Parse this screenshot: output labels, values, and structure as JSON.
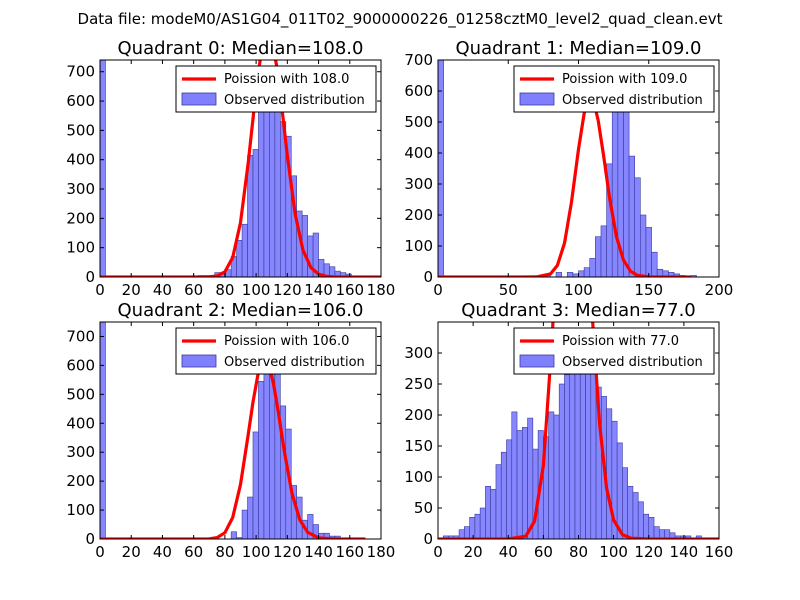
{
  "suptitle": "Data file: modeM0/AS1G04_011T02_9000000226_01258cztM0_level2_quad_clean.evt",
  "colors": {
    "poisson": "#ff0000",
    "hist_fill": "#8080ff",
    "hist_edge": "#3a3a99",
    "axes": "#000000",
    "legend_edge": "#000000"
  },
  "chart_data": [
    {
      "type": "bar",
      "title": "Quadrant 0: Median=108.0",
      "median": 108,
      "xlim": [
        0,
        180
      ],
      "ylim": [
        0,
        740
      ],
      "xticks": [
        0,
        20,
        40,
        60,
        80,
        100,
        120,
        140,
        160,
        180
      ],
      "yticks": [
        0,
        100,
        200,
        300,
        400,
        500,
        600,
        700
      ],
      "xtick_labels": [
        "0",
        "20",
        "40",
        "60",
        "80",
        "100",
        "120",
        "140",
        "160",
        "180"
      ],
      "ytick_labels": [
        "0",
        "100",
        "200",
        "300",
        "400",
        "500",
        "600",
        "700"
      ],
      "legend": [
        "Poission with 108.0",
        "Observed distribution"
      ],
      "bins": {
        "start": 0,
        "width": 3.5,
        "counts": [
          740,
          0,
          0,
          0,
          0,
          0,
          0,
          0,
          0,
          0,
          0,
          0,
          0,
          0,
          0,
          0,
          0,
          0,
          5,
          5,
          5,
          15,
          15,
          25,
          70,
          125,
          180,
          415,
          435,
          620,
          690,
          640,
          680,
          530,
          480,
          345,
          225,
          210,
          140,
          150,
          60,
          45,
          35,
          20,
          15,
          10,
          0,
          0,
          0,
          0,
          0,
          0
        ]
      },
      "curve_x": [
        0,
        60,
        70,
        75,
        80,
        85,
        90,
        95,
        100,
        103,
        106,
        108,
        110,
        113,
        116,
        120,
        125,
        130,
        135,
        140,
        145,
        150,
        180
      ]
    },
    {
      "type": "bar",
      "title": "Quadrant 1: Median=109.0",
      "median": 109,
      "xlim": [
        0,
        200
      ],
      "ylim": [
        0,
        700
      ],
      "xticks": [
        0,
        50,
        100,
        150,
        200
      ],
      "yticks": [
        0,
        100,
        200,
        300,
        400,
        500,
        600,
        700
      ],
      "xtick_labels": [
        "0",
        "50",
        "100",
        "150",
        "200"
      ],
      "ytick_labels": [
        "0",
        "100",
        "200",
        "300",
        "400",
        "500",
        "600",
        "700"
      ],
      "legend": [
        "Poission with 109.0",
        "Observed distribution"
      ],
      "bins": {
        "start": 0,
        "width": 4.0,
        "counts": [
          700,
          0,
          0,
          0,
          0,
          0,
          0,
          0,
          0,
          0,
          0,
          0,
          0,
          0,
          0,
          0,
          0,
          0,
          5,
          5,
          0,
          15,
          0,
          15,
          10,
          20,
          30,
          60,
          130,
          165,
          365,
          545,
          650,
          540,
          390,
          320,
          200,
          160,
          80,
          25,
          20,
          15,
          10,
          5,
          0,
          5,
          0,
          0,
          0,
          0
        ]
      },
      "curve_x": [
        0,
        60,
        70,
        80,
        85,
        90,
        95,
        100,
        104,
        107,
        109,
        111,
        114,
        118,
        122,
        127,
        132,
        137,
        142,
        150,
        160,
        180
      ]
    },
    {
      "type": "bar",
      "title": "Quadrant 2: Median=106.0",
      "median": 106,
      "xlim": [
        0,
        180
      ],
      "ylim": [
        0,
        750
      ],
      "xticks": [
        0,
        20,
        40,
        60,
        80,
        100,
        120,
        140,
        160,
        180
      ],
      "yticks": [
        0,
        100,
        200,
        300,
        400,
        500,
        600,
        700
      ],
      "xtick_labels": [
        "0",
        "20",
        "40",
        "60",
        "80",
        "100",
        "120",
        "140",
        "160",
        "180"
      ],
      "ytick_labels": [
        "0",
        "100",
        "200",
        "300",
        "400",
        "500",
        "600",
        "700"
      ],
      "legend": [
        "Poission with 106.0",
        "Observed distribution"
      ],
      "bins": {
        "start": 0,
        "width": 3.5,
        "counts": [
          750,
          0,
          0,
          0,
          0,
          0,
          0,
          0,
          0,
          0,
          0,
          0,
          0,
          0,
          0,
          0,
          0,
          0,
          0,
          0,
          0,
          0,
          0,
          0,
          25,
          5,
          100,
          145,
          370,
          545,
          630,
          690,
          640,
          460,
          380,
          185,
          145,
          65,
          85,
          50,
          20,
          20,
          10,
          10,
          0,
          0,
          0,
          0,
          0,
          0,
          0,
          0
        ]
      },
      "curve_x": [
        0,
        60,
        70,
        75,
        80,
        85,
        90,
        95,
        98,
        101,
        104,
        106,
        108,
        111,
        114,
        118,
        123,
        128,
        133,
        140,
        150,
        170
      ]
    },
    {
      "type": "bar",
      "title": "Quadrant 3: Median=77.0",
      "median": 77,
      "xlim": [
        0,
        160
      ],
      "ylim": [
        0,
        350
      ],
      "xticks": [
        0,
        20,
        40,
        60,
        80,
        100,
        120,
        140,
        160
      ],
      "yticks": [
        0,
        50,
        100,
        150,
        200,
        250,
        300
      ],
      "xtick_labels": [
        "0",
        "20",
        "40",
        "60",
        "80",
        "100",
        "120",
        "140",
        "160"
      ],
      "ytick_labels": [
        "0",
        "50",
        "100",
        "150",
        "200",
        "250",
        "300"
      ],
      "legend": [
        "Poission with 77.0",
        "Observed distribution"
      ],
      "bins": {
        "start": 0,
        "width": 3.0,
        "counts": [
          0,
          5,
          5,
          5,
          15,
          20,
          35,
          40,
          50,
          85,
          80,
          120,
          140,
          160,
          205,
          175,
          180,
          195,
          145,
          175,
          165,
          205,
          200,
          250,
          265,
          280,
          285,
          305,
          305,
          275,
          245,
          230,
          210,
          190,
          155,
          115,
          85,
          75,
          60,
          40,
          35,
          20,
          15,
          15,
          10,
          5,
          5,
          5,
          0,
          5,
          0,
          0,
          0
        ]
      },
      "curve_x": [
        0,
        40,
        50,
        55,
        60,
        65,
        70,
        73,
        75,
        77,
        79,
        81,
        84,
        88,
        92,
        96,
        100,
        105,
        110,
        120,
        160
      ]
    }
  ]
}
